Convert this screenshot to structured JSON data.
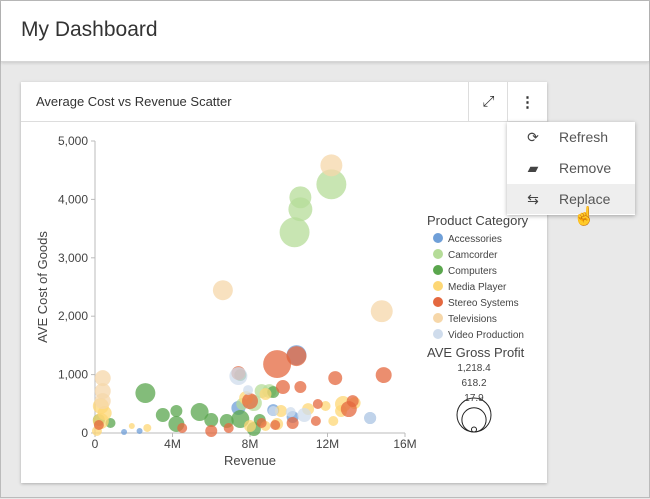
{
  "header": {
    "title": "My Dashboard"
  },
  "card": {
    "title": "Average Cost vs Revenue Scatter",
    "expand_icon": "expand-icon",
    "more_icon": "kebab-icon"
  },
  "menu": {
    "items": [
      {
        "label": "Refresh",
        "icon": "refresh-icon"
      },
      {
        "label": "Remove",
        "icon": "eraser-icon"
      },
      {
        "label": "Replace",
        "icon": "replace-icon"
      }
    ]
  },
  "chart_data": {
    "type": "scatter",
    "title": "Average Cost vs Revenue Scatter",
    "xlabel": "Revenue",
    "ylabel": "AVE Cost of Goods",
    "xlim": [
      0,
      16
    ],
    "ylim": [
      0,
      5000
    ],
    "xticks": [
      {
        "v": 0,
        "label": "0"
      },
      {
        "v": 4,
        "label": "4M"
      },
      {
        "v": 8,
        "label": "8M"
      },
      {
        "v": 12,
        "label": "12M"
      },
      {
        "v": 16,
        "label": "16M"
      }
    ],
    "yticks": [
      {
        "v": 0,
        "label": "0"
      },
      {
        "v": 1000,
        "label": "1,000"
      },
      {
        "v": 2000,
        "label": "2,000"
      },
      {
        "v": 3000,
        "label": "3,000"
      },
      {
        "v": 4000,
        "label": "4,000"
      },
      {
        "v": 5000,
        "label": "5,000"
      }
    ],
    "legend_title": "Product Category",
    "size_title": "AVE Gross Profit",
    "size_legend": [
      {
        "v": 1218.4,
        "label": "1,218.4"
      },
      {
        "v": 618.2,
        "label": "618.2"
      },
      {
        "v": 17.9,
        "label": "17.9"
      }
    ],
    "series": [
      {
        "name": "Accessories",
        "color": "#6f9fd8",
        "points": [
          [
            10.4,
            1334,
            420
          ],
          [
            9.2,
            393,
            151
          ],
          [
            2.3,
            34,
            38
          ],
          [
            1.5,
            17,
            38
          ],
          [
            10.2,
            274,
            151
          ],
          [
            14.2,
            257,
            151
          ],
          [
            7.4,
            428,
            206
          ]
        ]
      },
      {
        "name": "Camcorder",
        "color": "#b5dc98",
        "points": [
          [
            12.2,
            4258,
            945
          ],
          [
            10.6,
            4036,
            508
          ],
          [
            10.6,
            3830,
            605
          ],
          [
            10.3,
            3437,
            945
          ],
          [
            8.2,
            513,
            269
          ],
          [
            8.6,
            718,
            206
          ],
          [
            9.0,
            718,
            206
          ],
          [
            7.6,
            496,
            151
          ]
        ]
      },
      {
        "name": "Computers",
        "color": "#5aa64d",
        "points": [
          [
            2.6,
            684,
            420
          ],
          [
            3.5,
            308,
            206
          ],
          [
            4.2,
            376,
            151
          ],
          [
            4.2,
            154,
            269
          ],
          [
            5.4,
            359,
            340
          ],
          [
            6.0,
            222,
            206
          ],
          [
            6.8,
            205,
            206
          ],
          [
            7.5,
            239,
            340
          ],
          [
            8.5,
            222,
            151
          ],
          [
            0.2,
            222,
            151
          ],
          [
            0.8,
            171,
            105
          ],
          [
            8.2,
            68,
            206
          ],
          [
            9.2,
            701,
            151
          ],
          [
            7.5,
            992,
            151
          ]
        ]
      },
      {
        "name": "Media Player",
        "color": "#fdd775",
        "points": [
          [
            0.3,
            462,
            269
          ],
          [
            0.5,
            342,
            206
          ],
          [
            0.3,
            205,
            269
          ],
          [
            7.8,
            598,
            206
          ],
          [
            8.8,
            667,
            151
          ],
          [
            9.6,
            376,
            151
          ],
          [
            11.0,
            410,
            151
          ],
          [
            11.9,
            462,
            105
          ],
          [
            12.7,
            376,
            151
          ],
          [
            12.8,
            496,
            269
          ],
          [
            13.4,
            513,
            151
          ],
          [
            8.0,
            120,
            151
          ],
          [
            8.8,
            120,
            105
          ],
          [
            2.7,
            86,
            67
          ],
          [
            1.9,
            120,
            38
          ],
          [
            9.4,
            154,
            151
          ],
          [
            12.3,
            205,
            105
          ],
          [
            0.1,
            34,
            105
          ]
        ]
      },
      {
        "name": "Stereo Systems",
        "color": "#e4683f",
        "points": [
          [
            10.4,
            1317,
            420
          ],
          [
            9.4,
            1180,
            823
          ],
          [
            12.4,
            940,
            206
          ],
          [
            14.9,
            992,
            269
          ],
          [
            7.4,
            1026,
            206
          ],
          [
            9.7,
            787,
            206
          ],
          [
            10.6,
            787,
            151
          ],
          [
            8.0,
            547,
            269
          ],
          [
            11.5,
            496,
            105
          ],
          [
            13.1,
            410,
            269
          ],
          [
            13.3,
            547,
            151
          ],
          [
            6.0,
            34,
            151
          ],
          [
            6.9,
            86,
            105
          ],
          [
            4.5,
            86,
            105
          ],
          [
            0.2,
            137,
            105
          ],
          [
            9.3,
            137,
            105
          ],
          [
            8.6,
            171,
            105
          ],
          [
            10.2,
            171,
            151
          ],
          [
            11.4,
            205,
            105
          ]
        ]
      },
      {
        "name": "Televisions",
        "color": "#f6d7a9",
        "points": [
          [
            12.2,
            4583,
            508
          ],
          [
            6.6,
            2445,
            420
          ],
          [
            14.8,
            2086,
            508
          ],
          [
            0.4,
            940,
            269
          ],
          [
            0.4,
            718,
            269
          ],
          [
            0.4,
            547,
            269
          ]
        ]
      },
      {
        "name": "Video Production",
        "color": "#cfdcec",
        "points": [
          [
            7.4,
            975,
            340
          ],
          [
            7.9,
            735,
            105
          ],
          [
            10.8,
            308,
            206
          ],
          [
            14.2,
            257,
            151
          ],
          [
            9.2,
            376,
            105
          ],
          [
            10.1,
            359,
            105
          ]
        ]
      }
    ]
  }
}
